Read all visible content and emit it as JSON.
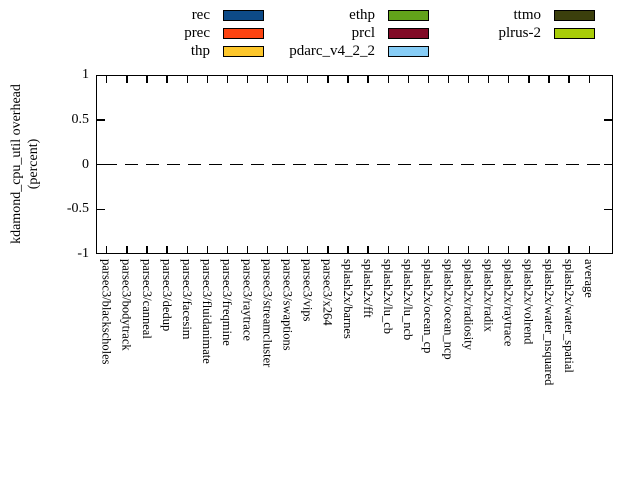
{
  "chart_data": {
    "type": "bar",
    "title": "",
    "xlabel": "",
    "ylabel": "kdamond_cpu_util overhead (percent)",
    "ylabel_lines": [
      "kdamond_cpu_util overhead",
      "(percent)"
    ],
    "ylim": [
      -1,
      1
    ],
    "yticks": [
      {
        "label": "1",
        "value": 1
      },
      {
        "label": "0.5",
        "value": 0.5
      },
      {
        "label": "0",
        "value": 0
      },
      {
        "label": "-0.5",
        "value": -0.5
      },
      {
        "label": "-1",
        "value": -1
      }
    ],
    "grid": false,
    "zero_line_style": "dashed",
    "legend_position": "top",
    "legend_columns": 3,
    "legend_fill": "column-major",
    "categories": [
      "parsec3/blackscholes",
      "parsec3/bodytrack",
      "parsec3/canneal",
      "parsec3/dedup",
      "parsec3/facesim",
      "parsec3/fluidanimate",
      "parsec3/freqmine",
      "parsec3/raytrace",
      "parsec3/streamcluster",
      "parsec3/swaptions",
      "parsec3/vips",
      "parsec3/x264",
      "splash2x/barnes",
      "splash2x/fft",
      "splash2x/lu_cb",
      "splash2x/lu_ncb",
      "splash2x/ocean_cp",
      "splash2x/ocean_ncp",
      "splash2x/radiosity",
      "splash2x/radix",
      "splash2x/raytrace",
      "splash2x/volrend",
      "splash2x/water_nsquared",
      "splash2x/water_spatial",
      "average"
    ],
    "series": [
      {
        "name": "rec",
        "color": "#0d4a87",
        "values": [
          0,
          0,
          0,
          0,
          0,
          0,
          0,
          0,
          0,
          0,
          0,
          0,
          0,
          0,
          0,
          0,
          0,
          0,
          0,
          0,
          0,
          0,
          0,
          0,
          0
        ]
      },
      {
        "name": "prec",
        "color": "#fc4411",
        "values": [
          0,
          0,
          0,
          0,
          0,
          0,
          0,
          0,
          0,
          0,
          0,
          0,
          0,
          0,
          0,
          0,
          0,
          0,
          0,
          0,
          0,
          0,
          0,
          0,
          0
        ]
      },
      {
        "name": "thp",
        "color": "#fdc72c",
        "values": [
          0,
          0,
          0,
          0,
          0,
          0,
          0,
          0,
          0,
          0,
          0,
          0,
          0,
          0,
          0,
          0,
          0,
          0,
          0,
          0,
          0,
          0,
          0,
          0,
          0
        ]
      },
      {
        "name": "ethp",
        "color": "#62a21a",
        "values": [
          0,
          0,
          0,
          0,
          0,
          0,
          0,
          0,
          0,
          0,
          0,
          0,
          0,
          0,
          0,
          0,
          0,
          0,
          0,
          0,
          0,
          0,
          0,
          0,
          0
        ]
      },
      {
        "name": "prcl",
        "color": "#810a26",
        "values": [
          0,
          0,
          0,
          0,
          0,
          0,
          0,
          0,
          0,
          0,
          0,
          0,
          0,
          0,
          0,
          0,
          0,
          0,
          0,
          0,
          0,
          0,
          0,
          0,
          0
        ]
      },
      {
        "name": "pdarc_v4_2_2",
        "color": "#87cdf6",
        "values": [
          0,
          0,
          0,
          0,
          0,
          0,
          0,
          0,
          0,
          0,
          0,
          0,
          0,
          0,
          0,
          0,
          0,
          0,
          0,
          0,
          0,
          0,
          0,
          0,
          0
        ]
      },
      {
        "name": "ttmo",
        "color": "#3b3f0c",
        "values": [
          0,
          0,
          0,
          0,
          0,
          0,
          0,
          0,
          0,
          0,
          0,
          0,
          0,
          0,
          0,
          0,
          0,
          0,
          0,
          0,
          0,
          0,
          0,
          0,
          0
        ]
      },
      {
        "name": "plrus-2",
        "color": "#a9cd09",
        "values": [
          0,
          0,
          0,
          0,
          0,
          0,
          0,
          0,
          0,
          0,
          0,
          0,
          0,
          0,
          0,
          0,
          0,
          0,
          0,
          0,
          0,
          0,
          0,
          0,
          0
        ]
      }
    ]
  }
}
